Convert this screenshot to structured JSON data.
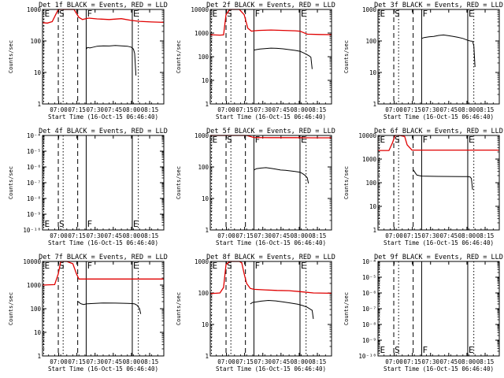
{
  "figure": {
    "background": "#ffffff",
    "axis_color": "#000000",
    "events_color": "#000000",
    "lld_color": "#e00000",
    "xlabel": "Start Time (16-Oct-15 06:46:40)",
    "ylabel": "Counts/sec"
  },
  "chart_data": [
    {
      "type": "line",
      "title": "Det 1f BLACK = Events, RED = LLD",
      "x_tick_labels": [
        "07:00",
        "07:15",
        "07:30",
        "07:45",
        "08:00",
        "08:15"
      ],
      "x_ticks_min": [
        13.33,
        28.33,
        43.33,
        58.33,
        73.33,
        88.33
      ],
      "xlim_min": [
        0,
        100
      ],
      "ylog": true,
      "ylim": [
        1,
        1000
      ],
      "y_tick_labels": [
        "1",
        "10",
        "100",
        "1000"
      ],
      "markers": [
        {
          "label": "E",
          "x": 1,
          "style": "dotted"
        },
        {
          "label": "S",
          "x": 13,
          "style": "dashed"
        },
        {
          "label": "",
          "x": 17,
          "style": "dotted"
        },
        {
          "label": "",
          "x": 29,
          "style": "dashed"
        },
        {
          "label": "F",
          "x": 36,
          "style": "solid"
        },
        {
          "label": "E",
          "x": 74,
          "style": "solid"
        },
        {
          "label": "",
          "x": 79,
          "style": "dotted"
        }
      ],
      "series": [
        {
          "role": "lld",
          "x": [
            0,
            4,
            8,
            11,
            13,
            16,
            20,
            26,
            30,
            33,
            35,
            38,
            45,
            55,
            65,
            73,
            80,
            90,
            100
          ],
          "y": [
            380,
            370,
            410,
            700,
            1000,
            1000,
            1000,
            1000,
            560,
            480,
            500,
            530,
            500,
            480,
            510,
            450,
            420,
            400,
            390
          ]
        },
        {
          "role": "events",
          "x": [
            36,
            37,
            39,
            42,
            45,
            50,
            55,
            60,
            65,
            70,
            73,
            74,
            75,
            76,
            77
          ],
          "y": [
            55,
            62,
            60,
            64,
            68,
            70,
            69,
            72,
            70,
            68,
            64,
            60,
            55,
            40,
            8
          ]
        }
      ]
    },
    {
      "type": "line",
      "title": "Det 2f BLACK = Events, RED = LLD",
      "x_tick_labels": [
        "07:00",
        "07:15",
        "07:30",
        "07:45",
        "08:00",
        "08:15"
      ],
      "x_ticks_min": [
        13.33,
        28.33,
        43.33,
        58.33,
        73.33,
        88.33
      ],
      "xlim_min": [
        0,
        100
      ],
      "ylog": true,
      "ylim": [
        1,
        10000
      ],
      "y_tick_labels": [
        "1",
        "10",
        "100",
        "1000",
        "10000"
      ],
      "markers": [
        {
          "label": "E",
          "x": 1,
          "style": "dotted"
        },
        {
          "label": "S",
          "x": 13,
          "style": "dashed"
        },
        {
          "label": "",
          "x": 17,
          "style": "dotted"
        },
        {
          "label": "",
          "x": 29,
          "style": "dashed"
        },
        {
          "label": "F",
          "x": 36,
          "style": "solid"
        },
        {
          "label": "E",
          "x": 74,
          "style": "solid"
        },
        {
          "label": "",
          "x": 79,
          "style": "dotted"
        }
      ],
      "series": [
        {
          "role": "lld",
          "x": [
            0,
            8,
            11,
            13,
            16,
            20,
            24,
            28,
            31,
            34,
            36,
            40,
            50,
            60,
            70,
            74,
            80,
            90,
            100
          ],
          "y": [
            850,
            820,
            840,
            6000,
            10000,
            10000,
            10000,
            6000,
            1600,
            1200,
            1250,
            1300,
            1350,
            1300,
            1250,
            1200,
            900,
            870,
            860
          ]
        },
        {
          "role": "events",
          "x": [
            36,
            38,
            41,
            45,
            50,
            55,
            60,
            65,
            70,
            74,
            77,
            80,
            82,
            83,
            84
          ],
          "y": [
            190,
            200,
            210,
            220,
            230,
            225,
            215,
            200,
            185,
            170,
            145,
            120,
            105,
            95,
            30
          ]
        }
      ]
    },
    {
      "type": "line",
      "title": "Det 3f BLACK = Events, RED = LLD",
      "x_tick_labels": [
        "07:00",
        "07:15",
        "07:30",
        "07:45",
        "08:00",
        "08:15"
      ],
      "x_ticks_min": [
        13.33,
        28.33,
        43.33,
        58.33,
        73.33,
        88.33
      ],
      "xlim_min": [
        0,
        100
      ],
      "ylog": true,
      "ylim": [
        1,
        1000
      ],
      "y_tick_labels": [
        "1",
        "10",
        "100",
        "1000"
      ],
      "markers": [
        {
          "label": "E",
          "x": 1,
          "style": "dotted"
        },
        {
          "label": "S",
          "x": 13,
          "style": "dashed"
        },
        {
          "label": "",
          "x": 17,
          "style": "dotted"
        },
        {
          "label": "",
          "x": 29,
          "style": "dashed"
        },
        {
          "label": "F",
          "x": 36,
          "style": "solid"
        },
        {
          "label": "E",
          "x": 74,
          "style": "solid"
        },
        {
          "label": "",
          "x": 79,
          "style": "dotted"
        }
      ],
      "series": [
        {
          "role": "events",
          "x": [
            36,
            38,
            42,
            46,
            50,
            54,
            58,
            62,
            66,
            70,
            74,
            76,
            78,
            79,
            80
          ],
          "y": [
            120,
            128,
            135,
            140,
            150,
            155,
            148,
            140,
            130,
            120,
            105,
            100,
            98,
            70,
            15
          ]
        }
      ]
    },
    {
      "type": "line",
      "title": "Det 4f BLACK = Events, RED = LLD",
      "x_tick_labels": [
        "07:00",
        "07:15",
        "07:30",
        "07:45",
        "08:00",
        "08:15"
      ],
      "x_ticks_min": [
        13.33,
        28.33,
        43.33,
        58.33,
        73.33,
        88.33
      ],
      "xlim_min": [
        0,
        100
      ],
      "ylog": true,
      "ylim": [
        1e-10,
        0.0001
      ],
      "y_tick_labels": [
        "10⁻¹⁰",
        "10⁻⁹",
        "10⁻⁸",
        "10⁻⁷",
        "10⁻⁶",
        "10⁻⁵",
        "10⁻⁴"
      ],
      "markers": [
        {
          "label": "E",
          "x": 1,
          "style": "dotted"
        },
        {
          "label": "S",
          "x": 13,
          "style": "dashed"
        },
        {
          "label": "",
          "x": 17,
          "style": "dotted"
        },
        {
          "label": "",
          "x": 29,
          "style": "dashed"
        },
        {
          "label": "F",
          "x": 36,
          "style": "solid"
        },
        {
          "label": "E",
          "x": 74,
          "style": "solid"
        },
        {
          "label": "",
          "x": 79,
          "style": "dotted"
        }
      ],
      "series": []
    },
    {
      "type": "line",
      "title": "Det 5f BLACK = Events, RED = LLD",
      "x_tick_labels": [
        "07:00",
        "07:15",
        "07:30",
        "07:45",
        "08:00",
        "08:15"
      ],
      "x_ticks_min": [
        13.33,
        28.33,
        43.33,
        58.33,
        73.33,
        88.33
      ],
      "xlim_min": [
        0,
        100
      ],
      "ylog": true,
      "ylim": [
        1,
        1000
      ],
      "y_tick_labels": [
        "1",
        "10",
        "100",
        "1000"
      ],
      "markers": [
        {
          "label": "E",
          "x": 1,
          "style": "dotted"
        },
        {
          "label": "S",
          "x": 13,
          "style": "dashed"
        },
        {
          "label": "",
          "x": 17,
          "style": "dotted"
        },
        {
          "label": "",
          "x": 29,
          "style": "dashed"
        },
        {
          "label": "F",
          "x": 36,
          "style": "solid"
        },
        {
          "label": "E",
          "x": 74,
          "style": "solid"
        },
        {
          "label": "",
          "x": 79,
          "style": "dotted"
        }
      ],
      "series": [
        {
          "role": "lld",
          "x": [
            0,
            12,
            20,
            30,
            36,
            50,
            70,
            85,
            100
          ],
          "y": [
            1000,
            1000,
            1000,
            1000,
            860,
            850,
            850,
            840,
            840
          ]
        },
        {
          "role": "events",
          "x": [
            36,
            38,
            42,
            46,
            50,
            54,
            58,
            62,
            66,
            70,
            74,
            76,
            78,
            80,
            81
          ],
          "y": [
            80,
            88,
            92,
            95,
            90,
            85,
            80,
            78,
            75,
            72,
            68,
            62,
            55,
            45,
            30
          ]
        }
      ]
    },
    {
      "type": "line",
      "title": "Det 6f BLACK = Events, RED = LLD",
      "x_tick_labels": [
        "07:00",
        "07:15",
        "07:30",
        "07:45",
        "08:00",
        "08:15"
      ],
      "x_ticks_min": [
        13.33,
        28.33,
        43.33,
        58.33,
        73.33,
        88.33
      ],
      "xlim_min": [
        0,
        100
      ],
      "ylog": true,
      "ylim": [
        1,
        10000
      ],
      "y_tick_labels": [
        "1",
        "10",
        "100",
        "1000",
        "10000"
      ],
      "markers": [
        {
          "label": "E",
          "x": 1,
          "style": "dotted"
        },
        {
          "label": "S",
          "x": 13,
          "style": "dashed"
        },
        {
          "label": "",
          "x": 17,
          "style": "dotted"
        },
        {
          "label": "",
          "x": 29,
          "style": "dashed"
        },
        {
          "label": "F",
          "x": 36,
          "style": "solid"
        },
        {
          "label": "E",
          "x": 74,
          "style": "solid"
        },
        {
          "label": "",
          "x": 79,
          "style": "dotted"
        }
      ],
      "series": [
        {
          "role": "lld",
          "x": [
            0,
            9,
            12,
            14,
            18,
            22,
            24,
            28,
            40,
            60,
            80,
            100
          ],
          "y": [
            2300,
            2300,
            5000,
            10000,
            10000,
            9000,
            4000,
            2400,
            2400,
            2400,
            2400,
            2400
          ]
        },
        {
          "role": "events",
          "x": [
            29,
            30,
            31,
            32,
            34,
            36,
            40,
            50,
            60,
            70,
            74,
            76,
            77,
            78
          ],
          "y": [
            350,
            300,
            250,
            210,
            200,
            190,
            188,
            185,
            183,
            182,
            180,
            175,
            150,
            50
          ]
        }
      ]
    },
    {
      "type": "line",
      "title": "Det 7f BLACK = Events, RED = LLD",
      "x_tick_labels": [
        "07:00",
        "07:15",
        "07:30",
        "07:45",
        "08:00",
        "08:15"
      ],
      "x_ticks_min": [
        13.33,
        28.33,
        43.33,
        58.33,
        73.33,
        88.33
      ],
      "xlim_min": [
        0,
        100
      ],
      "ylog": true,
      "ylim": [
        1,
        10000
      ],
      "y_tick_labels": [
        "1",
        "10",
        "100",
        "1000",
        "10000"
      ],
      "markers": [
        {
          "label": "E",
          "x": 1,
          "style": "dotted"
        },
        {
          "label": "S",
          "x": 13,
          "style": "dashed"
        },
        {
          "label": "",
          "x": 17,
          "style": "dotted"
        },
        {
          "label": "",
          "x": 29,
          "style": "dashed"
        },
        {
          "label": "F",
          "x": 36,
          "style": "solid"
        },
        {
          "label": "E",
          "x": 74,
          "style": "solid"
        },
        {
          "label": "",
          "x": 79,
          "style": "dotted"
        }
      ],
      "series": [
        {
          "role": "lld",
          "x": [
            0,
            10,
            13,
            15,
            20,
            25,
            28,
            30,
            40,
            60,
            80,
            100
          ],
          "y": [
            1000,
            1050,
            3000,
            10000,
            10000,
            8000,
            3000,
            1800,
            1800,
            1800,
            1800,
            1800
          ]
        },
        {
          "role": "events",
          "x": [
            29,
            30,
            31,
            32,
            34,
            36,
            40,
            50,
            60,
            70,
            74,
            76,
            78,
            80,
            81
          ],
          "y": [
            200,
            190,
            170,
            160,
            150,
            160,
            165,
            175,
            172,
            168,
            165,
            160,
            140,
            100,
            60
          ]
        }
      ]
    },
    {
      "type": "line",
      "title": "Det 8f BLACK = Events, RED = LLD",
      "x_tick_labels": [
        "07:00",
        "07:15",
        "07:30",
        "07:45",
        "08:00",
        "08:15"
      ],
      "x_ticks_min": [
        13.33,
        28.33,
        43.33,
        58.33,
        73.33,
        88.33
      ],
      "xlim_min": [
        0,
        100
      ],
      "ylog": true,
      "ylim": [
        1,
        1000
      ],
      "y_tick_labels": [
        "1",
        "10",
        "100",
        "1000"
      ],
      "markers": [
        {
          "label": "E",
          "x": 1,
          "style": "dotted"
        },
        {
          "label": "S",
          "x": 13,
          "style": "dashed"
        },
        {
          "label": "",
          "x": 17,
          "style": "dotted"
        },
        {
          "label": "",
          "x": 29,
          "style": "dashed"
        },
        {
          "label": "F",
          "x": 36,
          "style": "solid"
        },
        {
          "label": "E",
          "x": 74,
          "style": "solid"
        },
        {
          "label": "",
          "x": 79,
          "style": "dotted"
        }
      ],
      "series": [
        {
          "role": "lld",
          "x": [
            0,
            8,
            11,
            13,
            16,
            20,
            24,
            26,
            28,
            30,
            33,
            36,
            45,
            55,
            65,
            74,
            85,
            100
          ],
          "y": [
            95,
            100,
            150,
            800,
            1000,
            1000,
            1000,
            900,
            400,
            200,
            140,
            130,
            125,
            120,
            118,
            110,
            100,
            98
          ]
        },
        {
          "role": "events",
          "x": [
            33,
            35,
            38,
            42,
            48,
            54,
            60,
            66,
            72,
            76,
            80,
            84,
            85
          ],
          "y": [
            45,
            50,
            52,
            55,
            58,
            56,
            52,
            48,
            44,
            40,
            35,
            28,
            15
          ]
        }
      ]
    },
    {
      "type": "line",
      "title": "Det 9f BLACK = Events, RED = LLD",
      "x_tick_labels": [
        "07:00",
        "07:15",
        "07:30",
        "07:45",
        "08:00",
        "08:15"
      ],
      "x_ticks_min": [
        13.33,
        28.33,
        43.33,
        58.33,
        73.33,
        88.33
      ],
      "xlim_min": [
        0,
        100
      ],
      "ylog": true,
      "ylim": [
        1e-10,
        0.0001
      ],
      "y_tick_labels": [
        "10⁻¹⁰",
        "10⁻⁹",
        "10⁻⁸",
        "10⁻⁷",
        "10⁻⁶",
        "10⁻⁵",
        "10⁻⁴"
      ],
      "markers": [
        {
          "label": "E",
          "x": 1,
          "style": "dotted"
        },
        {
          "label": "S",
          "x": 13,
          "style": "dashed"
        },
        {
          "label": "",
          "x": 17,
          "style": "dotted"
        },
        {
          "label": "",
          "x": 29,
          "style": "dashed"
        },
        {
          "label": "F",
          "x": 36,
          "style": "solid"
        },
        {
          "label": "E",
          "x": 74,
          "style": "solid"
        },
        {
          "label": "",
          "x": 79,
          "style": "dotted"
        }
      ],
      "series": []
    }
  ]
}
